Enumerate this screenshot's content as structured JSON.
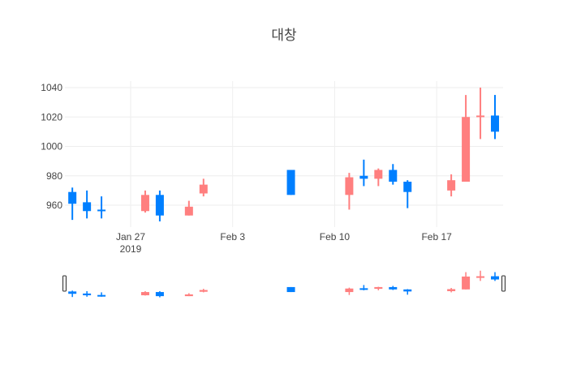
{
  "chart_data": {
    "type": "candlestick",
    "title": "대창",
    "xlabel": "",
    "ylabel": "",
    "ylim": [
      945,
      1042
    ],
    "grid": true,
    "x_ticks": [
      {
        "date": "2019-01-27",
        "label": "Jan 27",
        "sublabel": "2019"
      },
      {
        "date": "2019-02-03",
        "label": "Feb 3"
      },
      {
        "date": "2019-02-10",
        "label": "Feb 10"
      },
      {
        "date": "2019-02-17",
        "label": "Feb 17"
      }
    ],
    "y_ticks": [
      960,
      980,
      1000,
      1020,
      1040
    ],
    "colors": {
      "increasing": "#FF7F7F",
      "decreasing": "#007FFF",
      "grid": "#eeeeee",
      "text": "#444444"
    },
    "candles": [
      {
        "date": "2019-01-23",
        "open": 969,
        "high": 972,
        "low": 950,
        "close": 961
      },
      {
        "date": "2019-01-24",
        "open": 962,
        "high": 970,
        "low": 951,
        "close": 956
      },
      {
        "date": "2019-01-25",
        "open": 957,
        "high": 966,
        "low": 951,
        "close": 956
      },
      {
        "date": "2019-01-28",
        "open": 956,
        "high": 970,
        "low": 955,
        "close": 967
      },
      {
        "date": "2019-01-29",
        "open": 967,
        "high": 970,
        "low": 949,
        "close": 953
      },
      {
        "date": "2019-01-31",
        "open": 953,
        "high": 963,
        "low": 953,
        "close": 959
      },
      {
        "date": "2019-02-01",
        "open": 968,
        "high": 978,
        "low": 966,
        "close": 974
      },
      {
        "date": "2019-02-07",
        "open": 984,
        "high": 984,
        "low": 967,
        "close": 967
      },
      {
        "date": "2019-02-11",
        "open": 967,
        "high": 982,
        "low": 957,
        "close": 979
      },
      {
        "date": "2019-02-12",
        "open": 980,
        "high": 991,
        "low": 973,
        "close": 978
      },
      {
        "date": "2019-02-13",
        "open": 978,
        "high": 985,
        "low": 973,
        "close": 984
      },
      {
        "date": "2019-02-14",
        "open": 984,
        "high": 988,
        "low": 974,
        "close": 976
      },
      {
        "date": "2019-02-15",
        "open": 976,
        "high": 977,
        "low": 958,
        "close": 969
      },
      {
        "date": "2019-02-18",
        "open": 970,
        "high": 981,
        "low": 966,
        "close": 977
      },
      {
        "date": "2019-02-19",
        "open": 976,
        "high": 1035,
        "low": 976,
        "close": 1020
      },
      {
        "date": "2019-02-20",
        "open": 1020,
        "high": 1040,
        "low": 1005,
        "close": 1021
      },
      {
        "date": "2019-02-21",
        "open": 1021,
        "high": 1035,
        "low": 1005,
        "close": 1010
      }
    ],
    "rangeslider": true
  }
}
